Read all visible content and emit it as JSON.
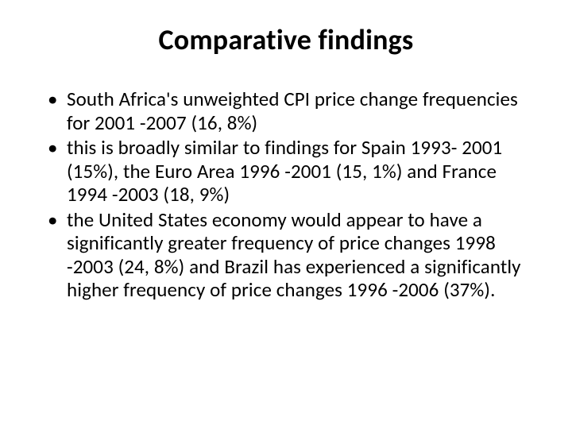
{
  "slide": {
    "title": "Comparative findings",
    "bullets": [
      "South Africa's unweighted CPI price change frequencies for 2001 -2007 (16, 8%)",
      "this is broadly similar to findings for Spain 1993- 2001 (15%), the Euro Area 1996 -2001 (15, 1%) and France 1994 -2003 (18, 9%)",
      "the United States economy would appear to have a significantly greater frequency of price changes 1998 -2003 (24, 8%) and Brazil has experienced a significantly higher frequency of price changes 1996 -2006 (37%)."
    ],
    "style": {
      "background_color": "#ffffff",
      "text_color": "#000000",
      "title_fontsize": 36,
      "title_fontweight": 700,
      "body_fontsize": 25,
      "font_family": "Calibri",
      "bullet_char": "•"
    }
  }
}
